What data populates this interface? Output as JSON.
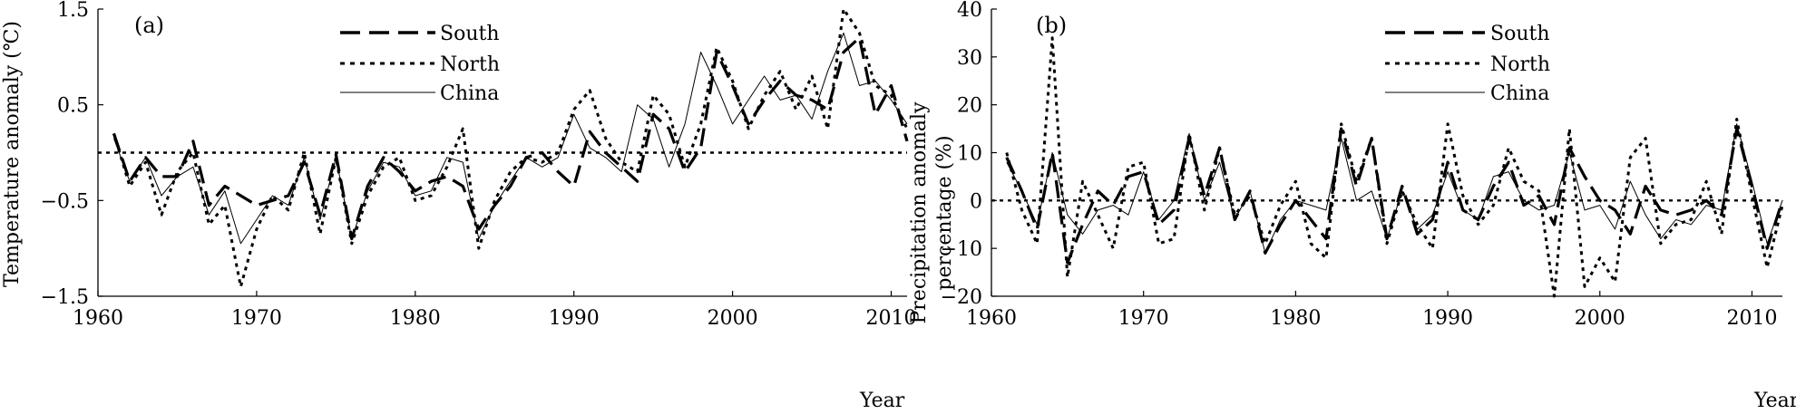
{
  "chart_data": [
    {
      "type": "line",
      "panel_label": "(a)",
      "ylabel": "Temperature anomaly (℃)",
      "xlabel": "Year",
      "xlim": [
        1960,
        2011
      ],
      "ylim": [
        -1.5,
        1.5
      ],
      "x_ticks": [
        "1960",
        "1970",
        "1980",
        "1990",
        "2000",
        "2010"
      ],
      "y_ticks": [
        "1.5",
        "0.5",
        "−0.5",
        "−1.5"
      ],
      "legend": "top-center",
      "reference_line": 0,
      "x": [
        1961,
        1962,
        1963,
        1964,
        1965,
        1966,
        1967,
        1968,
        1969,
        1970,
        1971,
        1972,
        1973,
        1974,
        1975,
        1976,
        1977,
        1978,
        1979,
        1980,
        1981,
        1982,
        1983,
        1984,
        1985,
        1986,
        1987,
        1988,
        1989,
        1990,
        1991,
        1992,
        1993,
        1994,
        1995,
        1996,
        1997,
        1998,
        1999,
        2000,
        2001,
        2002,
        2003,
        2004,
        2005,
        2006,
        2007,
        2008,
        2009,
        2010,
        2011
      ],
      "series": [
        {
          "name": "South",
          "dash": "dashed",
          "values": [
            0.2,
            -0.3,
            -0.05,
            -0.25,
            -0.25,
            0.12,
            -0.55,
            -0.35,
            -0.45,
            -0.55,
            -0.5,
            -0.45,
            -0.1,
            -0.65,
            -0.02,
            -0.9,
            -0.35,
            -0.05,
            -0.2,
            -0.4,
            -0.3,
            -0.25,
            -0.35,
            -0.8,
            -0.55,
            -0.35,
            -0.05,
            0.0,
            -0.2,
            -0.35,
            0.22,
            0.0,
            -0.15,
            -0.3,
            0.4,
            0.25,
            -0.2,
            0.05,
            1.05,
            0.7,
            0.3,
            0.55,
            0.75,
            0.6,
            0.55,
            0.45,
            1.05,
            1.2,
            0.4,
            0.7,
            0.12
          ]
        },
        {
          "name": "North",
          "dash": "dotted",
          "values": [
            0.2,
            -0.35,
            -0.1,
            -0.65,
            -0.2,
            0.0,
            -0.75,
            -0.55,
            -1.4,
            -0.8,
            -0.45,
            -0.6,
            -0.0,
            -0.85,
            -0.05,
            -0.95,
            -0.45,
            -0.15,
            -0.05,
            -0.5,
            -0.45,
            -0.15,
            0.25,
            -1.0,
            -0.5,
            -0.2,
            -0.05,
            -0.1,
            0.0,
            0.45,
            0.65,
            0.15,
            -0.1,
            -0.2,
            0.6,
            0.4,
            -0.15,
            0.3,
            1.1,
            0.75,
            0.25,
            0.6,
            0.85,
            0.45,
            0.8,
            0.25,
            1.5,
            1.25,
            0.7,
            0.6,
            0.25
          ]
        },
        {
          "name": "China",
          "dash": "solid",
          "values": [
            0.15,
            -0.3,
            -0.05,
            -0.45,
            -0.25,
            -0.15,
            -0.65,
            -0.4,
            -0.95,
            -0.7,
            -0.45,
            -0.55,
            -0.05,
            -0.7,
            -0.05,
            -0.9,
            -0.4,
            -0.1,
            -0.15,
            -0.45,
            -0.4,
            -0.05,
            -0.1,
            -0.9,
            -0.55,
            -0.3,
            -0.05,
            -0.15,
            -0.05,
            0.4,
            0.05,
            -0.05,
            -0.2,
            0.5,
            0.35,
            -0.15,
            0.3,
            1.05,
            0.7,
            0.3,
            0.55,
            0.8,
            0.55,
            0.6,
            0.35,
            0.85,
            1.25,
            0.7,
            0.75,
            0.55,
            0.3
          ]
        }
      ]
    },
    {
      "type": "line",
      "panel_label": "(b)",
      "ylabel": "Precipitation anomaly percentage (%)",
      "ylabel_line1": "Precipitation anomaly",
      "ylabel_line2": "percentage (%)",
      "xlabel": "Year",
      "xlim": [
        1960,
        2012
      ],
      "ylim": [
        -20,
        40
      ],
      "x_ticks": [
        "1960",
        "1970",
        "1980",
        "1990",
        "2000",
        "2010"
      ],
      "y_ticks": [
        "40",
        "30",
        "20",
        "10",
        "0",
        "−10",
        "−20"
      ],
      "legend": "top-center",
      "reference_line": 0,
      "x": [
        1961,
        1962,
        1963,
        1964,
        1965,
        1966,
        1967,
        1968,
        1969,
        1970,
        1971,
        1972,
        1973,
        1974,
        1975,
        1976,
        1977,
        1978,
        1979,
        1980,
        1981,
        1982,
        1983,
        1984,
        1985,
        1986,
        1987,
        1988,
        1989,
        1990,
        1991,
        1992,
        1993,
        1994,
        1995,
        1996,
        1997,
        1998,
        1999,
        2000,
        2001,
        2002,
        2003,
        2004,
        2005,
        2006,
        2007,
        2008,
        2009,
        2010,
        2011,
        2012
      ],
      "series": [
        {
          "name": "South",
          "dash": "dashed",
          "values": [
            9,
            2,
            -6,
            10,
            -13,
            -5,
            2,
            -1,
            5,
            6,
            -5,
            -2,
            13,
            1,
            11,
            -4,
            2,
            -11,
            -5,
            0,
            -4,
            -8,
            15,
            3,
            13,
            -8,
            3,
            -7,
            -4,
            8,
            -2,
            -4,
            3,
            8,
            -1,
            1,
            -5,
            11,
            5,
            0,
            -2,
            -7,
            3,
            -2,
            -3,
            -2,
            0,
            -3,
            15,
            3,
            -10,
            0
          ]
        },
        {
          "name": "North",
          "dash": "dotted",
          "values": [
            10,
            -2,
            -9,
            34,
            -16,
            4,
            -3,
            -10,
            7,
            8,
            -9,
            -8,
            14,
            -2,
            11,
            -3,
            1,
            -9,
            -1,
            4,
            -9,
            -12,
            16,
            4,
            13,
            -9,
            2,
            -5,
            -10,
            16,
            1,
            -5,
            -1,
            11,
            4,
            2,
            -20,
            15,
            -18,
            -12,
            -17,
            9,
            13,
            -9,
            -5,
            -4,
            4,
            -7,
            17,
            1,
            -14,
            -1
          ]
        },
        {
          "name": "China",
          "dash": "solid",
          "values": [
            8,
            2,
            -5,
            10,
            -3,
            -7,
            -2,
            -1,
            -3,
            6,
            -4,
            0,
            14,
            0,
            8,
            -4,
            2,
            -11,
            -4,
            0,
            -1,
            -2,
            13,
            0,
            2,
            -8,
            2,
            -6,
            -3,
            6,
            -2,
            -4,
            5,
            6,
            0,
            -2,
            -1,
            10,
            -2,
            -1,
            -6,
            4,
            -3,
            -8,
            -4,
            -5,
            -1,
            -2,
            16,
            4,
            -9,
            0
          ]
        }
      ]
    }
  ]
}
